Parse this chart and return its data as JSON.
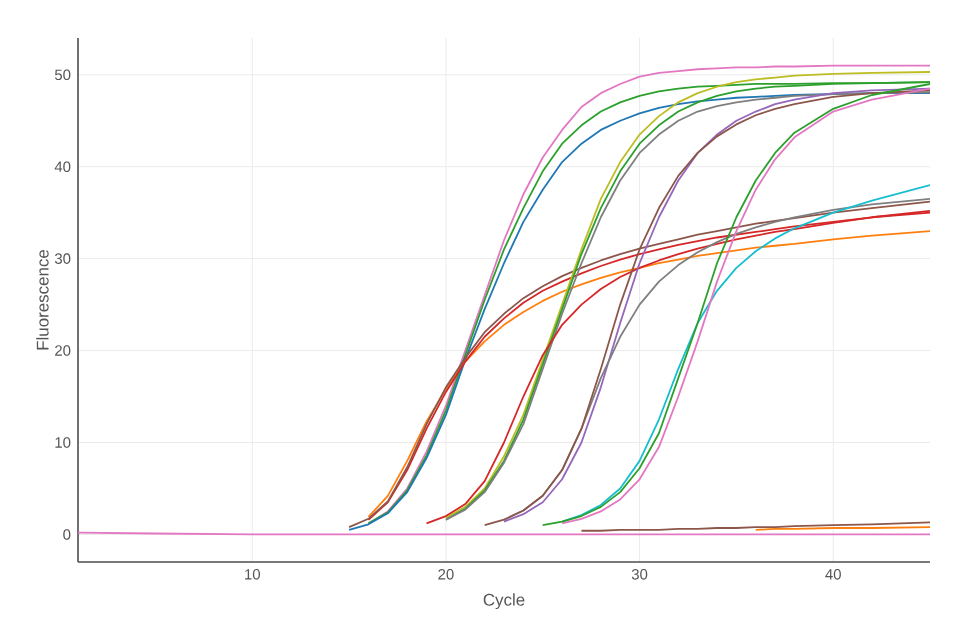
{
  "chart_data": {
    "type": "line",
    "xlabel": "Cycle",
    "ylabel": "Fluorescence",
    "x": [
      1,
      5,
      10,
      12,
      14,
      15,
      16,
      17,
      18,
      19,
      20,
      21,
      22,
      23,
      24,
      25,
      26,
      27,
      28,
      29,
      30,
      31,
      32,
      33,
      34,
      35,
      36,
      37,
      38,
      40,
      42,
      45
    ],
    "xlim": [
      1,
      45
    ],
    "xticks": [
      10,
      20,
      30,
      40
    ],
    "ylim": [
      -3,
      54
    ],
    "yticks": [
      0,
      10,
      20,
      30,
      40,
      50
    ],
    "grid": true,
    "marker": "none",
    "line_style": "solid",
    "series": [
      {
        "color": "#e377c2",
        "values": [
          null,
          null,
          null,
          null,
          null,
          null,
          1.2,
          2.5,
          5,
          9,
          14,
          20,
          26,
          32,
          37,
          41,
          44,
          46.5,
          48,
          49,
          49.8,
          50.2,
          50.4,
          50.6,
          50.7,
          50.8,
          50.8,
          50.9,
          50.9,
          51,
          51,
          51
        ]
      },
      {
        "color": "#2ca02c",
        "values": [
          null,
          null,
          null,
          null,
          null,
          null,
          1.2,
          2.4,
          4.8,
          8.6,
          13.5,
          19.5,
          25.5,
          31,
          35.5,
          39.5,
          42.5,
          44.5,
          46,
          47,
          47.7,
          48.2,
          48.5,
          48.7,
          48.8,
          48.9,
          49,
          49,
          49,
          49.1,
          49.1,
          49.2
        ]
      },
      {
        "color": "#1f77b4",
        "values": [
          null,
          null,
          null,
          null,
          null,
          0.5,
          1.1,
          2.3,
          4.6,
          8.3,
          13,
          19,
          24.5,
          29.5,
          34,
          37.5,
          40.5,
          42.5,
          44,
          45,
          45.8,
          46.4,
          46.8,
          47.1,
          47.3,
          47.5,
          47.6,
          47.7,
          47.8,
          47.9,
          48,
          48
        ]
      },
      {
        "color": "#ff7f0e",
        "values": [
          null,
          null,
          null,
          null,
          null,
          null,
          1.9,
          4.2,
          8,
          12.3,
          15.8,
          18.8,
          21,
          22.8,
          24.2,
          25.4,
          26.4,
          27.2,
          27.9,
          28.5,
          29,
          29.5,
          29.9,
          30.3,
          30.6,
          30.9,
          31.2,
          31.4,
          31.6,
          32.1,
          32.5,
          33
        ]
      },
      {
        "color": "#d62728",
        "values": [
          null,
          null,
          null,
          null,
          null,
          null,
          1.6,
          3.5,
          7,
          11.5,
          15.5,
          18.8,
          21.5,
          23.5,
          25.2,
          26.5,
          27.5,
          28.4,
          29.2,
          29.9,
          30.5,
          31,
          31.5,
          31.9,
          32.3,
          32.6,
          32.9,
          33.2,
          33.5,
          34,
          34.5,
          35
        ]
      },
      {
        "color": "#8c564b",
        "values": [
          null,
          null,
          null,
          null,
          null,
          0.8,
          1.7,
          3.6,
          7.3,
          12,
          16,
          19.2,
          22,
          24,
          25.7,
          27,
          28.1,
          29,
          29.8,
          30.5,
          31.1,
          31.6,
          32.1,
          32.6,
          33,
          33.4,
          33.8,
          34.1,
          34.4,
          35,
          35.5,
          36.2
        ]
      },
      {
        "color": "#bcbd22",
        "values": [
          null,
          null,
          null,
          null,
          null,
          null,
          null,
          null,
          null,
          null,
          1.8,
          3,
          5,
          8.5,
          13,
          19,
          25,
          31,
          36.5,
          40.5,
          43.5,
          45.5,
          47,
          48,
          48.7,
          49.2,
          49.5,
          49.7,
          49.9,
          50.1,
          50.2,
          50.3
        ]
      },
      {
        "color": "#2ca02c",
        "values": [
          null,
          null,
          null,
          null,
          null,
          null,
          null,
          null,
          null,
          null,
          1.6,
          2.8,
          4.8,
          8,
          12.5,
          18.5,
          24.5,
          30.5,
          35.5,
          39.5,
          42.5,
          44.5,
          46,
          47,
          47.7,
          48.2,
          48.5,
          48.7,
          48.8,
          49,
          49.1,
          49.2
        ]
      },
      {
        "color": "#7f7f7f",
        "values": [
          null,
          null,
          null,
          null,
          null,
          null,
          null,
          null,
          null,
          null,
          1.6,
          2.7,
          4.6,
          7.8,
          12,
          18,
          24,
          29.5,
          34.5,
          38.5,
          41.5,
          43.5,
          45,
          46,
          46.6,
          47,
          47.3,
          47.5,
          47.7,
          47.9,
          48,
          48.1
        ]
      },
      {
        "color": "#d62728",
        "values": [
          null,
          null,
          null,
          null,
          null,
          null,
          null,
          null,
          null,
          1.2,
          2,
          3.3,
          5.8,
          10,
          15,
          19.5,
          22.8,
          25,
          26.7,
          28,
          29,
          29.8,
          30.5,
          31.1,
          31.6,
          32.1,
          32.5,
          32.9,
          33.2,
          33.9,
          34.5,
          35.2
        ]
      },
      {
        "color": "#9467bd",
        "values": [
          null,
          null,
          null,
          null,
          null,
          null,
          null,
          null,
          null,
          null,
          null,
          null,
          null,
          1.4,
          2.2,
          3.5,
          6,
          10,
          16,
          23,
          29.5,
          34.5,
          38.5,
          41.5,
          43.5,
          45,
          46,
          46.8,
          47.3,
          48,
          48.3,
          48.5
        ]
      },
      {
        "color": "#7f7f7f",
        "values": [
          null,
          null,
          null,
          null,
          null,
          null,
          null,
          null,
          null,
          null,
          null,
          null,
          null,
          1.6,
          2.6,
          4.2,
          7,
          11.5,
          17,
          21.5,
          25,
          27.5,
          29.3,
          30.7,
          31.8,
          32.7,
          33.4,
          34,
          34.5,
          35.3,
          35.9,
          36.5
        ]
      },
      {
        "color": "#8c564b",
        "values": [
          null,
          null,
          null,
          null,
          null,
          null,
          null,
          null,
          null,
          null,
          null,
          null,
          1,
          1.6,
          2.6,
          4.2,
          7,
          11.5,
          18,
          25,
          31,
          35.5,
          39,
          41.5,
          43.3,
          44.6,
          45.6,
          46.3,
          46.8,
          47.6,
          48,
          48.3
        ]
      },
      {
        "color": "#17becf",
        "values": [
          null,
          null,
          null,
          null,
          null,
          null,
          null,
          null,
          null,
          null,
          null,
          null,
          null,
          null,
          null,
          null,
          1.4,
          2.1,
          3.2,
          5,
          8,
          12.5,
          18,
          23,
          26.5,
          29,
          30.8,
          32.2,
          33.3,
          35,
          36.3,
          38
        ]
      },
      {
        "color": "#e377c2",
        "values": [
          null,
          null,
          null,
          null,
          null,
          null,
          null,
          null,
          null,
          null,
          null,
          null,
          null,
          null,
          null,
          null,
          1.2,
          1.7,
          2.5,
          3.8,
          6,
          9.5,
          15,
          21,
          27.5,
          33,
          37.5,
          40.8,
          43.2,
          46,
          47.3,
          48.5
        ]
      },
      {
        "color": "#2ca02c",
        "values": [
          null,
          null,
          null,
          null,
          null,
          null,
          null,
          null,
          null,
          null,
          null,
          null,
          null,
          null,
          null,
          1,
          1.4,
          2,
          3,
          4.6,
          7.2,
          11,
          17,
          23,
          29.5,
          34.5,
          38.5,
          41.5,
          43.7,
          46.3,
          47.8,
          49
        ]
      },
      {
        "color": "#8c564b",
        "values": [
          null,
          null,
          null,
          null,
          null,
          null,
          null,
          null,
          null,
          null,
          null,
          null,
          null,
          null,
          null,
          null,
          null,
          0.4,
          0.4,
          0.5,
          0.5,
          0.5,
          0.6,
          0.6,
          0.7,
          0.7,
          0.8,
          0.8,
          0.9,
          1,
          1.1,
          1.3
        ]
      },
      {
        "color": "#ff7f0e",
        "values": [
          null,
          null,
          null,
          null,
          null,
          null,
          null,
          null,
          null,
          null,
          null,
          null,
          null,
          null,
          null,
          null,
          null,
          null,
          null,
          null,
          null,
          null,
          null,
          null,
          null,
          null,
          0.5,
          0.6,
          0.6,
          0.7,
          0.7,
          0.8
        ]
      },
      {
        "color": "#e377c2",
        "values": [
          0.2,
          0.1,
          0,
          0,
          0,
          0,
          0,
          0,
          0,
          0,
          0,
          0,
          0,
          0,
          0,
          0,
          0,
          0,
          0,
          0,
          0,
          0,
          0,
          0,
          0,
          0,
          0,
          0,
          0,
          0,
          0,
          0
        ]
      }
    ]
  }
}
